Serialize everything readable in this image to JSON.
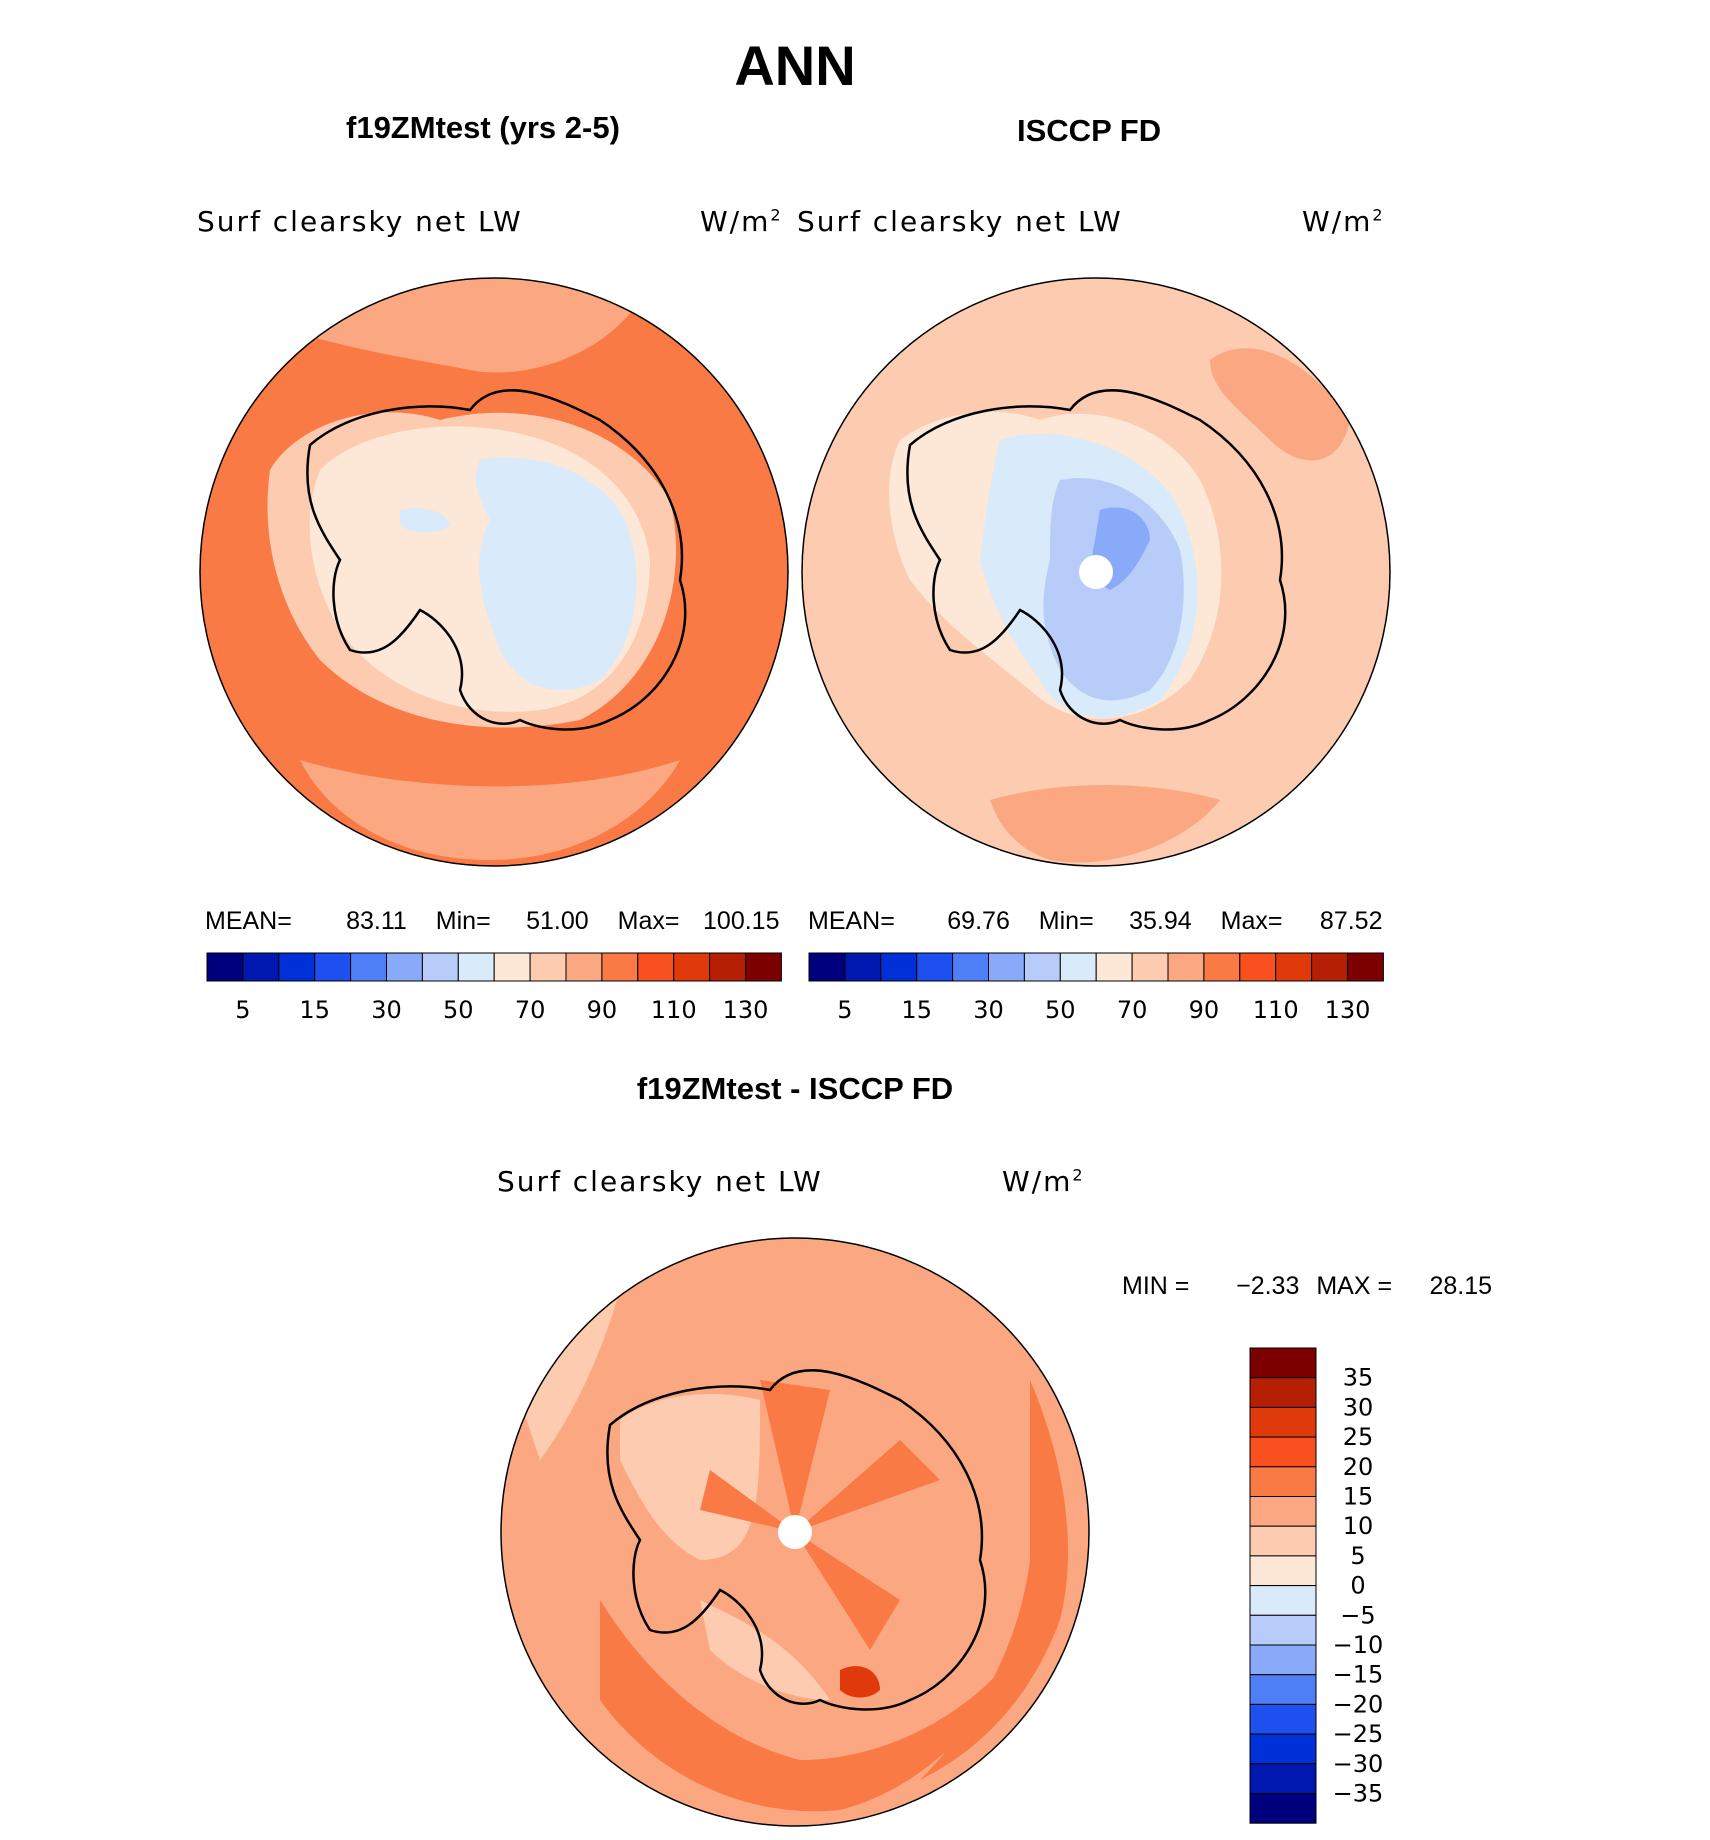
{
  "title": "ANN",
  "panels": [
    {
      "id": "model",
      "title": "f19ZMtest (yrs 2-5)",
      "field": "Surf clearsky net LW",
      "units_base": "W/m",
      "units_exp": "2",
      "stats": {
        "mean_label": "MEAN=",
        "mean": "83.11",
        "min_label": "Min=",
        "min": "51.00",
        "max_label": "Max=",
        "max": "100.15"
      }
    },
    {
      "id": "obs",
      "title": "ISCCP FD",
      "field": "Surf clearsky net LW",
      "units_base": "W/m",
      "units_exp": "2",
      "stats": {
        "mean_label": "MEAN=",
        "mean": "69.76",
        "min_label": "Min=",
        "min": "35.94",
        "max_label": "Max=",
        "max": "87.52"
      }
    }
  ],
  "abs_colorbar": {
    "colors": [
      "#00007f",
      "#0018b0",
      "#0030d8",
      "#1e50f0",
      "#4f7ff7",
      "#88aaf8",
      "#b7ccf8",
      "#d9eafa",
      "#fde7d6",
      "#fccbb0",
      "#fba882",
      "#fa7a45",
      "#f8501f",
      "#e03a0c",
      "#b52004",
      "#7d0000"
    ],
    "tick_labels": [
      "5",
      "15",
      "30",
      "50",
      "70",
      "90",
      "110",
      "130"
    ]
  },
  "diff": {
    "title": "f19ZMtest - ISCCP FD",
    "field": "Surf clearsky net LW",
    "units_base": "W/m",
    "units_exp": "2",
    "min_label": "MIN =",
    "min": "−2.33",
    "max_label": "MAX =",
    "max": "28.15",
    "colorbar": {
      "colors_top_to_bottom": [
        "#7d0000",
        "#b52004",
        "#e03a0c",
        "#f8501f",
        "#fa7a45",
        "#fba882",
        "#fccbb0",
        "#fde7d6",
        "#d9eafa",
        "#b7ccf8",
        "#88aaf8",
        "#4f7ff7",
        "#1e50f0",
        "#0030d8",
        "#0018b0",
        "#00007f"
      ],
      "tick_labels": [
        "35",
        "30",
        "25",
        "20",
        "15",
        "10",
        "5",
        "0",
        "−5",
        "−10",
        "−15",
        "−20",
        "−25",
        "−30",
        "−35"
      ]
    }
  }
}
